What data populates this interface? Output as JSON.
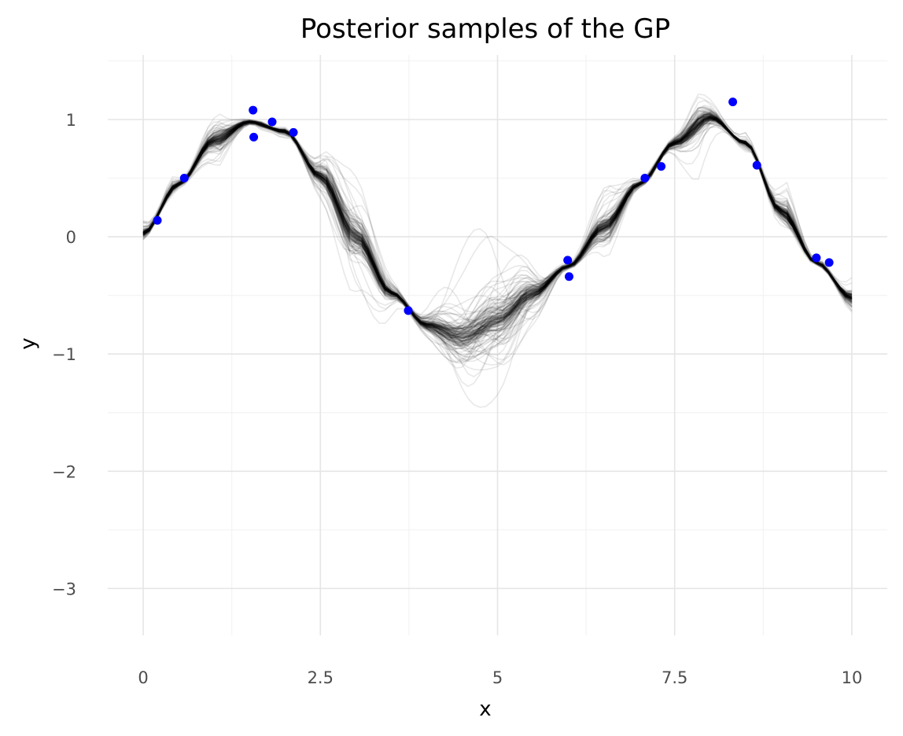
{
  "chart_data": {
    "type": "line",
    "title": "Posterior samples of the GP",
    "xlabel": "x",
    "ylabel": "y",
    "xlim": [
      -0.5,
      10.5
    ],
    "ylim": [
      -3.4,
      1.55
    ],
    "x_ticks": [
      0,
      2.5,
      5,
      7.5,
      10
    ],
    "x_tick_labels": [
      "0",
      "2.5",
      "5",
      "7.5",
      "10"
    ],
    "y_ticks": [
      -3,
      -2,
      -1,
      0,
      1
    ],
    "y_tick_labels": [
      "−3",
      "−2",
      "−1",
      "0",
      "1"
    ],
    "grid": true,
    "legend": "none",
    "sample_series": {
      "count": 150,
      "color": "#000000",
      "opacity": 0.09,
      "x_range": [
        0,
        10
      ],
      "mean": {
        "x": [
          0,
          0.5,
          1.0,
          1.5,
          2.0,
          2.5,
          3.0,
          3.5,
          4.0,
          4.5,
          5.0,
          5.5,
          6.0,
          6.5,
          7.0,
          7.5,
          8.0,
          8.5,
          9.0,
          9.5,
          10.0
        ],
        "y": [
          0.03,
          0.45,
          0.82,
          0.98,
          0.9,
          0.52,
          0.0,
          -0.48,
          -0.75,
          -0.85,
          -0.72,
          -0.48,
          -0.25,
          0.08,
          0.45,
          0.8,
          1.02,
          0.8,
          0.22,
          -0.22,
          -0.52
        ]
      }
    },
    "observed_points": {
      "color": "#0000ff",
      "x": [
        0.2,
        0.58,
        1.55,
        1.56,
        1.82,
        2.12,
        3.74,
        5.99,
        6.01,
        7.08,
        7.31,
        8.32,
        8.66,
        9.5,
        9.68
      ],
      "y": [
        0.14,
        0.5,
        1.08,
        0.85,
        0.98,
        0.89,
        -0.63,
        -0.2,
        -0.34,
        0.5,
        0.6,
        1.15,
        0.61,
        -0.18,
        -0.22
      ]
    }
  }
}
